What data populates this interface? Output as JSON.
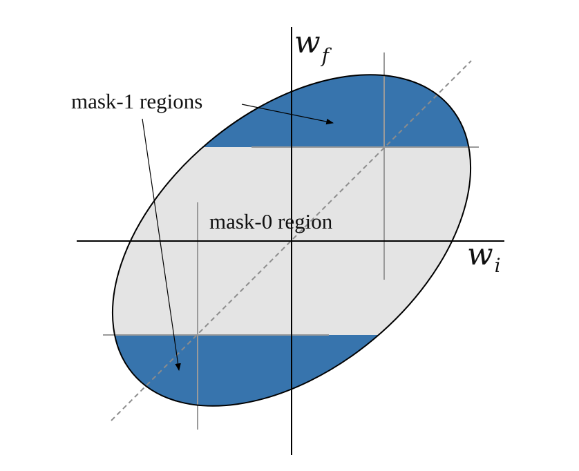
{
  "diagram": {
    "axes": {
      "x_label": {
        "main": "w",
        "sub": "i"
      },
      "y_label": {
        "main": "w",
        "sub": "f"
      }
    },
    "labels": {
      "mask1": "mask-1 regions",
      "mask0": "mask-0 region"
    },
    "colors": {
      "mask1_fill": "#3774ad",
      "mask0_fill": "#e4e4e4",
      "outline": "#000000",
      "threshold_lines": "#9a9a9a",
      "diagonal": "#8c8c8c"
    }
  }
}
